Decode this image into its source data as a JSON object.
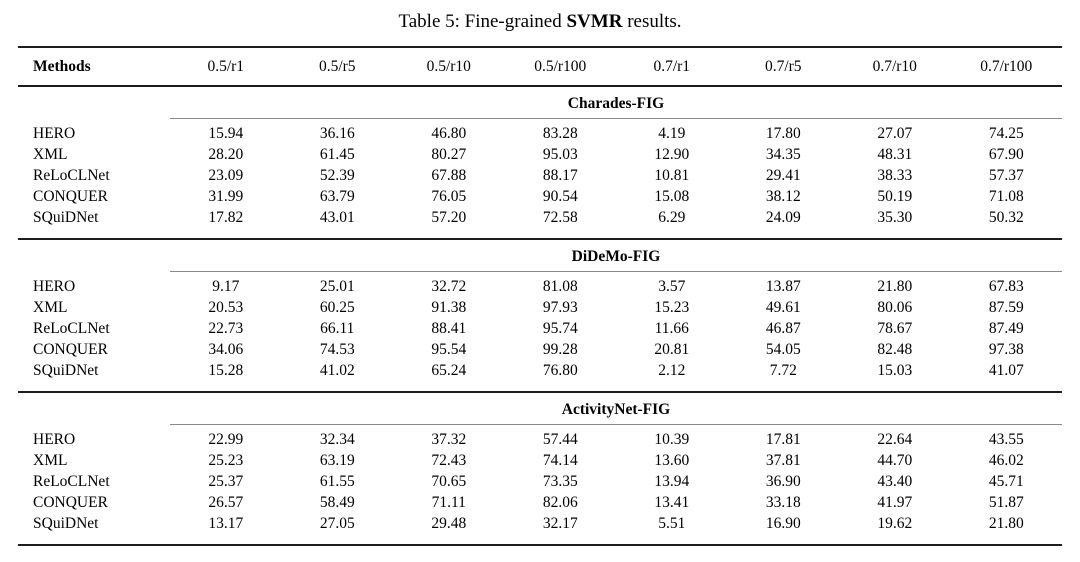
{
  "title": {
    "prefix": "Table 5: Fine-grained ",
    "bold": "SVMR",
    "suffix": " results."
  },
  "table": {
    "methods_header": "Methods",
    "column_headers": [
      "0.5/r1",
      "0.5/r5",
      "0.5/r10",
      "0.5/r100",
      "0.7/r1",
      "0.7/r5",
      "0.7/r10",
      "0.7/r100"
    ],
    "sections": [
      {
        "name": "Charades-FIG",
        "rows": [
          {
            "method": "HERO",
            "values": [
              "15.94",
              "36.16",
              "46.80",
              "83.28",
              "4.19",
              "17.80",
              "27.07",
              "74.25"
            ]
          },
          {
            "method": "XML",
            "values": [
              "28.20",
              "61.45",
              "80.27",
              "95.03",
              "12.90",
              "34.35",
              "48.31",
              "67.90"
            ]
          },
          {
            "method": "ReLoCLNet",
            "values": [
              "23.09",
              "52.39",
              "67.88",
              "88.17",
              "10.81",
              "29.41",
              "38.33",
              "57.37"
            ]
          },
          {
            "method": "CONQUER",
            "values": [
              "31.99",
              "63.79",
              "76.05",
              "90.54",
              "15.08",
              "38.12",
              "50.19",
              "71.08"
            ]
          },
          {
            "method": "SQuiDNet",
            "values": [
              "17.82",
              "43.01",
              "57.20",
              "72.58",
              "6.29",
              "24.09",
              "35.30",
              "50.32"
            ]
          }
        ]
      },
      {
        "name": "DiDeMo-FIG",
        "rows": [
          {
            "method": "HERO",
            "values": [
              "9.17",
              "25.01",
              "32.72",
              "81.08",
              "3.57",
              "13.87",
              "21.80",
              "67.83"
            ]
          },
          {
            "method": "XML",
            "values": [
              "20.53",
              "60.25",
              "91.38",
              "97.93",
              "15.23",
              "49.61",
              "80.06",
              "87.59"
            ]
          },
          {
            "method": "ReLoCLNet",
            "values": [
              "22.73",
              "66.11",
              "88.41",
              "95.74",
              "11.66",
              "46.87",
              "78.67",
              "87.49"
            ]
          },
          {
            "method": "CONQUER",
            "values": [
              "34.06",
              "74.53",
              "95.54",
              "99.28",
              "20.81",
              "54.05",
              "82.48",
              "97.38"
            ]
          },
          {
            "method": "SQuiDNet",
            "values": [
              "15.28",
              "41.02",
              "65.24",
              "76.80",
              "2.12",
              "7.72",
              "15.03",
              "41.07"
            ]
          }
        ]
      },
      {
        "name": "ActivityNet-FIG",
        "rows": [
          {
            "method": "HERO",
            "values": [
              "22.99",
              "32.34",
              "37.32",
              "57.44",
              "10.39",
              "17.81",
              "22.64",
              "43.55"
            ]
          },
          {
            "method": "XML",
            "values": [
              "25.23",
              "63.19",
              "72.43",
              "74.14",
              "13.60",
              "37.81",
              "44.70",
              "46.02"
            ]
          },
          {
            "method": "ReLoCLNet",
            "values": [
              "25.37",
              "61.55",
              "70.65",
              "73.35",
              "13.94",
              "36.90",
              "43.40",
              "45.71"
            ]
          },
          {
            "method": "CONQUER",
            "values": [
              "26.57",
              "58.49",
              "71.11",
              "82.06",
              "13.41",
              "33.18",
              "41.97",
              "51.87"
            ]
          },
          {
            "method": "SQuiDNet",
            "values": [
              "13.17",
              "27.05",
              "29.48",
              "32.17",
              "5.51",
              "16.90",
              "19.62",
              "21.80"
            ]
          }
        ]
      }
    ]
  },
  "colors": {
    "background": "#ffffff",
    "text": "#000000",
    "rule_heavy": "#1c1c1c",
    "rule_light": "#888888"
  }
}
